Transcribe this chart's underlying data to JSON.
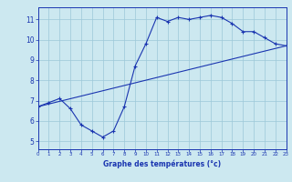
{
  "xlabel": "Graphe des températures (°c)",
  "bg_color": "#cce8f0",
  "line_color": "#1a35b0",
  "grid_color": "#9cc8d8",
  "xlim": [
    0,
    23
  ],
  "ylim": [
    4.6,
    11.6
  ],
  "xticks": [
    0,
    1,
    2,
    3,
    4,
    5,
    6,
    7,
    8,
    9,
    10,
    11,
    12,
    13,
    14,
    15,
    16,
    17,
    18,
    19,
    20,
    21,
    22,
    23
  ],
  "yticks": [
    5,
    6,
    7,
    8,
    9,
    10,
    11
  ],
  "hours": [
    0,
    1,
    2,
    3,
    4,
    5,
    6,
    7,
    8,
    9,
    10,
    11,
    12,
    13,
    14,
    15,
    16,
    17,
    18,
    19,
    20,
    21,
    22,
    23
  ],
  "temps": [
    6.7,
    6.9,
    7.1,
    6.6,
    5.8,
    5.5,
    5.2,
    5.5,
    6.7,
    8.7,
    9.8,
    11.1,
    10.9,
    11.1,
    11.0,
    11.1,
    11.2,
    11.1,
    10.8,
    10.4,
    10.4,
    10.1,
    9.8,
    9.7
  ],
  "trend_x": [
    0,
    23
  ],
  "trend_y": [
    6.7,
    9.7
  ]
}
